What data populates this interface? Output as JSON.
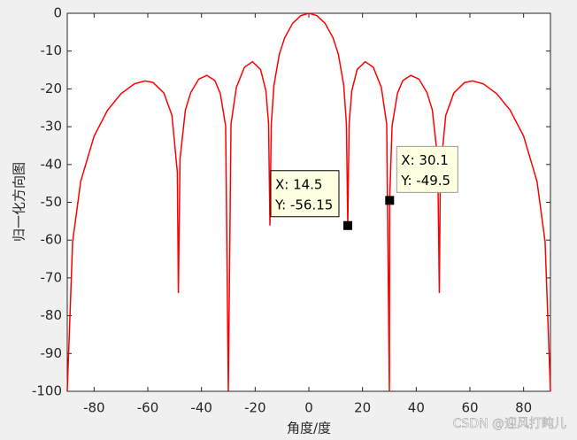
{
  "chart_data": {
    "type": "line",
    "xlabel": "角度/度",
    "ylabel": "归一化方向图",
    "x": [
      -90,
      -88,
      -85,
      -80,
      -75,
      -70,
      -65,
      -61,
      -58,
      -54,
      -51,
      -49,
      -48.6,
      -48,
      -46,
      -44,
      -41,
      -38,
      -35,
      -33,
      -31,
      -30,
      -29,
      -27,
      -24,
      -21,
      -18,
      -16,
      -15,
      -14.5,
      -14,
      -13,
      -11,
      -9,
      -6,
      -3,
      0,
      3,
      6,
      9,
      11,
      13,
      14,
      14.5,
      15,
      16,
      18,
      21,
      24,
      27,
      29,
      30,
      30.1,
      31,
      33,
      35,
      38,
      41,
      44,
      46,
      48,
      48.6,
      49,
      51,
      54,
      58,
      61,
      65,
      70,
      75,
      80,
      85,
      88,
      90
    ],
    "values": [
      -100,
      -60.4,
      -44.5,
      -32.5,
      -25.65,
      -21.3,
      -18.65,
      -17.9,
      -18.32,
      -21.1,
      -27.0,
      -41.96,
      -74,
      -38.6,
      -25.6,
      -20.97,
      -17.4,
      -16.43,
      -17.8,
      -21.2,
      -29.8,
      -100,
      -29.3,
      -19.6,
      -14.29,
      -12.8,
      -14.86,
      -20.5,
      -29.2,
      -56.15,
      -29.3,
      -19.06,
      -10.85,
      -6.48,
      -2.62,
      -0.63,
      0,
      -0.63,
      -2.62,
      -6.48,
      -10.85,
      -19.06,
      -29.3,
      -56.15,
      -29.2,
      -20.5,
      -14.86,
      -12.8,
      -14.29,
      -19.6,
      -29.3,
      -100,
      -49.5,
      -29.8,
      -21.2,
      -17.8,
      -16.43,
      -17.4,
      -20.97,
      -25.6,
      -38.6,
      -74,
      -41.96,
      -27.0,
      -21.1,
      -18.32,
      -17.9,
      -18.65,
      -21.3,
      -25.65,
      -32.5,
      -44.5,
      -60.4,
      -100
    ],
    "color": "#ff0000",
    "xlim": [
      -90,
      90
    ],
    "xticks": [
      -80,
      -60,
      -40,
      -20,
      0,
      20,
      40,
      60,
      80
    ],
    "ylim": [
      -100,
      0
    ],
    "yticks": [
      0,
      -10,
      -20,
      -30,
      -40,
      -50,
      -60,
      -70,
      -80,
      -90,
      -100
    ],
    "grid": false,
    "datatips": [
      {
        "x": 14.5,
        "y": -56.15,
        "x_label": "X: 14.5",
        "y_label": "Y: -56.15"
      },
      {
        "x": 30.1,
        "y": -49.5,
        "x_label": "X: 30.1",
        "y_label": "Y: -49.5"
      }
    ]
  },
  "watermark": "CSDN @迎风打盹儿"
}
